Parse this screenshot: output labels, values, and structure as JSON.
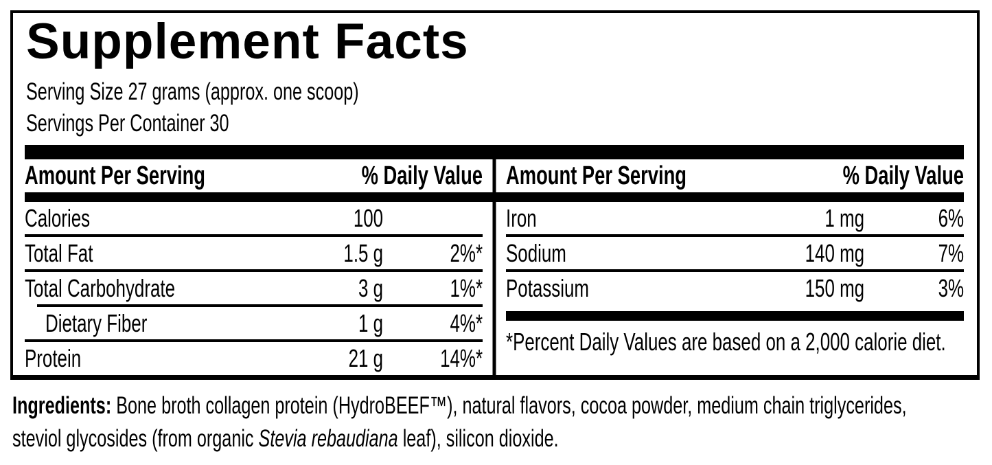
{
  "colors": {
    "text": "#000000",
    "background": "#ffffff",
    "rules_and_bars": "#000000"
  },
  "label": {
    "title": "Supplement Facts",
    "serving_size": "Serving Size 27 grams (approx. one scoop)",
    "servings_per_container": "Servings Per Container 30"
  },
  "table": {
    "amount_header": "Amount Per Serving",
    "dv_header": "% Daily Value",
    "left_rows": [
      {
        "name": "Calories",
        "amount": "100",
        "dv": ""
      },
      {
        "name": "Total Fat",
        "amount": "1.5 g",
        "dv": "2%*"
      },
      {
        "name": "Total Carbohydrate",
        "amount": "3 g",
        "dv": "1%*"
      },
      {
        "name": "Dietary Fiber",
        "amount": "1 g",
        "dv": "4%*",
        "indent": true
      },
      {
        "name": "Protein",
        "amount": "21 g",
        "dv": "14%*"
      }
    ],
    "right_rows": [
      {
        "name": "Iron",
        "amount": "1 mg",
        "dv": "6%"
      },
      {
        "name": "Sodium",
        "amount": "140 mg",
        "dv": "7%"
      },
      {
        "name": "Potassium",
        "amount": "150 mg",
        "dv": "3%"
      }
    ],
    "footnote": "*Percent Daily Values are based on a 2,000 calorie diet."
  },
  "ingredients": {
    "label": "Ingredients:",
    "line1": " Bone broth collagen protein (HydroBEEF™), natural flavors, cocoa powder, medium chain triglycerides,",
    "line2_pre": "steviol glycosides (from organic ",
    "line2_italic": "Stevia rebaudiana",
    "line2_post": " leaf), silicon dioxide."
  }
}
